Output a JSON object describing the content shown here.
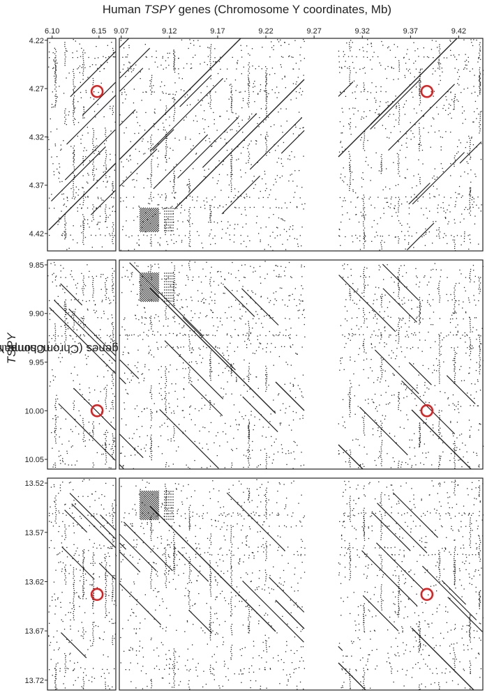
{
  "header": {
    "title_pre": "Human ",
    "title_gene": "TSPY",
    "title_post": " genes (Chromosome Y coordinates, Mb)"
  },
  "yaxis_label": {
    "pre": "Chimpanzee ",
    "gene": "TSPY",
    "post": " genes (Chromosome Y coordinates, Mb)"
  },
  "chart_data": {
    "type": "scatter",
    "subtype": "dot plot (sequence self-similarity)",
    "title": "Human TSPY genes (Chromosome Y coordinates, Mb)",
    "xlabel": "Human TSPY genes (Chromosome Y coordinates, Mb)",
    "ylabel": "Chimpanzee TSPY genes (Chromosome Y coordinates, Mb)",
    "grid": false,
    "marker_color": "#222222",
    "highlight_color": "#e02020",
    "x_segments": [
      {
        "range": [
          6.095,
          6.168
        ],
        "ticks": [
          "6.10",
          "6.15"
        ]
      },
      {
        "range": [
          9.068,
          9.445
        ],
        "ticks": [
          "9.07",
          "9.12",
          "9.17",
          "9.22",
          "9.27",
          "9.32",
          "9.37",
          "9.42"
        ]
      }
    ],
    "y_panels": [
      {
        "range": [
          4.218,
          4.438
        ],
        "reversed": true,
        "ticks": [
          "4.22",
          "4.27",
          "4.32",
          "4.37",
          "4.42"
        ],
        "diagonal_direction": "ascending"
      },
      {
        "range": [
          9.845,
          10.06
        ],
        "reversed": true,
        "ticks": [
          "9.85",
          "9.90",
          "9.95",
          "10.00",
          "10.05"
        ],
        "diagonal_direction": "descending"
      },
      {
        "range": [
          13.515,
          13.73
        ],
        "reversed": true,
        "ticks": [
          "13.52",
          "13.57",
          "13.62",
          "13.67",
          "13.72"
        ],
        "diagonal_direction": "descending"
      }
    ],
    "highlights": [
      {
        "panel": 0,
        "x": 6.148,
        "y": 4.273
      },
      {
        "panel": 0,
        "x": 9.387,
        "y": 4.273
      },
      {
        "panel": 1,
        "x": 6.148,
        "y": 10.0
      },
      {
        "panel": 1,
        "x": 9.387,
        "y": 10.0
      },
      {
        "panel": 2,
        "x": 6.148,
        "y": 13.633
      },
      {
        "panel": 2,
        "x": 9.387,
        "y": 13.633
      }
    ],
    "gap_x_range": [
      9.26,
      9.295
    ]
  }
}
